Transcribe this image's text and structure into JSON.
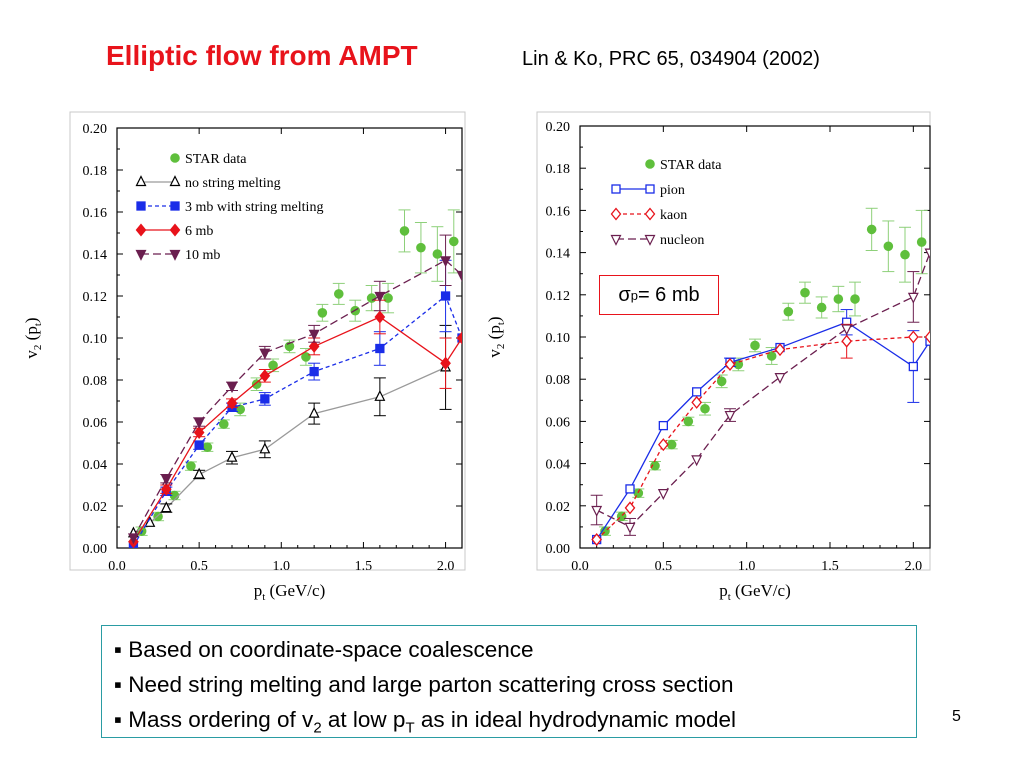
{
  "slide": {
    "title": "Elliptic flow from AMPT",
    "citation": "Lin & Ko, PRC 65, 034904 (2002)",
    "sigma_label_prefix": "σ",
    "sigma_label_sub": "p",
    "sigma_label_value": "= 6 mb",
    "bullets": [
      "▪ Based on coordinate-space coalescence",
      "▪ Need string melting and large parton scattering cross section"
    ],
    "bullet3": {
      "a": "▪ Mass ordering of v",
      "sub1": "2",
      "b": " at low p",
      "sub2": "T",
      "c": " as in ideal hydrodynamic model"
    },
    "page_number": "5"
  },
  "chart_data": [
    {
      "type": "line",
      "xlabel": "p_t (GeV/c)",
      "ylabel": "v_2 (p_t)",
      "xlim": [
        0.0,
        2.1
      ],
      "ylim": [
        0.0,
        0.2
      ],
      "xticks": [
        "0.0",
        "0.5",
        "1.0",
        "1.5",
        "2.0"
      ],
      "yticks": [
        "0.00",
        "0.02",
        "0.04",
        "0.06",
        "0.08",
        "0.10",
        "0.12",
        "0.14",
        "0.16",
        "0.18",
        "0.20"
      ],
      "legend_position": "top-left",
      "series": [
        {
          "name": "STAR data",
          "style": "points",
          "marker": "circle-filled",
          "color": "#5fbf3c",
          "x": [
            0.15,
            0.25,
            0.35,
            0.45,
            0.55,
            0.65,
            0.75,
            0.85,
            0.95,
            1.05,
            1.15,
            1.25,
            1.35,
            1.45,
            1.55,
            1.65,
            1.75,
            1.85,
            1.95,
            2.05
          ],
          "y": [
            0.008,
            0.015,
            0.025,
            0.039,
            0.048,
            0.059,
            0.066,
            0.078,
            0.087,
            0.096,
            0.091,
            0.112,
            0.121,
            0.113,
            0.119,
            0.119,
            0.151,
            0.143,
            0.14,
            0.146
          ],
          "err": [
            0.002,
            0.002,
            0.002,
            0.002,
            0.002,
            0.002,
            0.003,
            0.003,
            0.003,
            0.003,
            0.004,
            0.004,
            0.005,
            0.005,
            0.006,
            0.007,
            0.01,
            0.012,
            0.013,
            0.015
          ]
        },
        {
          "name": "no string melting",
          "style": "line",
          "marker": "triangle-up-open",
          "color": "#000000",
          "line_color": "#9a9a9a",
          "dash": "",
          "x": [
            0.1,
            0.2,
            0.3,
            0.5,
            0.7,
            0.9,
            1.2,
            1.6,
            2.0
          ],
          "y": [
            0.007,
            0.012,
            0.019,
            0.035,
            0.043,
            0.047,
            0.064,
            0.072,
            0.086
          ],
          "err": [
            0.0,
            0.0,
            0.002,
            0.002,
            0.003,
            0.004,
            0.005,
            0.009,
            0.02
          ]
        },
        {
          "name": "3 mb with string melting",
          "style": "line",
          "marker": "square-filled",
          "color": "#1a2de8",
          "line_color": "#1a2de8",
          "dash": "4,3",
          "x": [
            0.1,
            0.3,
            0.5,
            0.7,
            0.9,
            1.2,
            1.6,
            2.0,
            2.1
          ],
          "y": [
            0.001,
            0.027,
            0.049,
            0.067,
            0.071,
            0.084,
            0.095,
            0.12,
            0.1
          ],
          "err": [
            0.0,
            0.002,
            0.002,
            0.002,
            0.003,
            0.004,
            0.008,
            0.017,
            0.0
          ]
        },
        {
          "name": "6 mb",
          "style": "line",
          "marker": "diamond-filled",
          "color": "#e8131b",
          "line_color": "#e8131b",
          "dash": "",
          "x": [
            0.1,
            0.3,
            0.5,
            0.7,
            0.9,
            1.2,
            1.6,
            2.0,
            2.1
          ],
          "y": [
            0.003,
            0.028,
            0.055,
            0.069,
            0.082,
            0.096,
            0.11,
            0.088,
            0.1
          ],
          "err": [
            0.0,
            0.002,
            0.002,
            0.002,
            0.003,
            0.004,
            0.008,
            0.012,
            0.0
          ]
        },
        {
          "name": "10 mb",
          "style": "line",
          "marker": "triangle-down-filled",
          "color": "#6b1f4f",
          "line_color": "#6b1f4f",
          "dash": "8,4",
          "x": [
            0.1,
            0.3,
            0.5,
            0.7,
            0.9,
            1.2,
            1.6,
            2.0,
            2.1
          ],
          "y": [
            0.005,
            0.033,
            0.06,
            0.077,
            0.093,
            0.102,
            0.12,
            0.137,
            0.13
          ],
          "err": [
            0.0,
            0.002,
            0.002,
            0.002,
            0.003,
            0.004,
            0.007,
            0.012,
            0.0
          ]
        }
      ]
    },
    {
      "type": "line",
      "xlabel": "p_t (GeV/c)",
      "ylabel": "v_2 (p_t)",
      "xlim": [
        0.0,
        2.1
      ],
      "ylim": [
        0.0,
        0.2
      ],
      "xticks": [
        "0.0",
        "0.5",
        "1.0",
        "1.5",
        "2.0"
      ],
      "yticks": [
        "0.00",
        "0.02",
        "0.04",
        "0.06",
        "0.08",
        "0.10",
        "0.12",
        "0.14",
        "0.16",
        "0.18",
        "0.20"
      ],
      "legend_position": "top-left",
      "series": [
        {
          "name": "STAR data",
          "style": "points",
          "marker": "circle-filled",
          "color": "#5fbf3c",
          "x": [
            0.15,
            0.25,
            0.35,
            0.45,
            0.55,
            0.65,
            0.75,
            0.85,
            0.95,
            1.05,
            1.15,
            1.25,
            1.35,
            1.45,
            1.55,
            1.65,
            1.75,
            1.85,
            1.95,
            2.05
          ],
          "y": [
            0.008,
            0.015,
            0.026,
            0.039,
            0.049,
            0.06,
            0.066,
            0.079,
            0.087,
            0.096,
            0.091,
            0.112,
            0.121,
            0.114,
            0.118,
            0.118,
            0.151,
            0.143,
            0.139,
            0.145
          ],
          "err": [
            0.002,
            0.002,
            0.002,
            0.002,
            0.002,
            0.002,
            0.003,
            0.003,
            0.003,
            0.003,
            0.004,
            0.004,
            0.005,
            0.005,
            0.006,
            0.008,
            0.01,
            0.012,
            0.013,
            0.015
          ]
        },
        {
          "name": "pion",
          "style": "line",
          "marker": "square-open",
          "color": "#1a2de8",
          "line_color": "#1a2de8",
          "dash": "",
          "x": [
            0.1,
            0.3,
            0.5,
            0.7,
            0.9,
            1.2,
            1.6,
            2.0,
            2.1
          ],
          "y": [
            0.004,
            0.028,
            0.058,
            0.074,
            0.088,
            0.095,
            0.107,
            0.086,
            0.098
          ],
          "err": [
            0.0,
            0.0,
            0.0,
            0.0,
            0.002,
            0.0,
            0.006,
            0.017,
            0.0
          ]
        },
        {
          "name": "kaon",
          "style": "line",
          "marker": "diamond-open",
          "color": "#e8131b",
          "line_color": "#e8131b",
          "dash": "4,3",
          "x": [
            0.1,
            0.3,
            0.5,
            0.7,
            0.9,
            1.2,
            1.6,
            2.0,
            2.1
          ],
          "y": [
            0.004,
            0.019,
            0.049,
            0.069,
            0.087,
            0.094,
            0.098,
            0.1,
            0.1
          ],
          "err": [
            0.0,
            0.0,
            0.0,
            0.0,
            0.0,
            0.0,
            0.008,
            0.0,
            0.0
          ]
        },
        {
          "name": "nucleon",
          "style": "line",
          "marker": "triangle-down-open",
          "color": "#6b1f4f",
          "line_color": "#6b1f4f",
          "dash": "8,4",
          "x": [
            0.1,
            0.3,
            0.5,
            0.7,
            0.9,
            1.2,
            1.6,
            2.0,
            2.1
          ],
          "y": [
            0.018,
            0.01,
            0.026,
            0.042,
            0.063,
            0.081,
            0.104,
            0.119,
            0.14
          ],
          "err": [
            0.007,
            0.004,
            0.0,
            0.0,
            0.003,
            0.0,
            0.0,
            0.012,
            0.0
          ]
        }
      ]
    }
  ]
}
